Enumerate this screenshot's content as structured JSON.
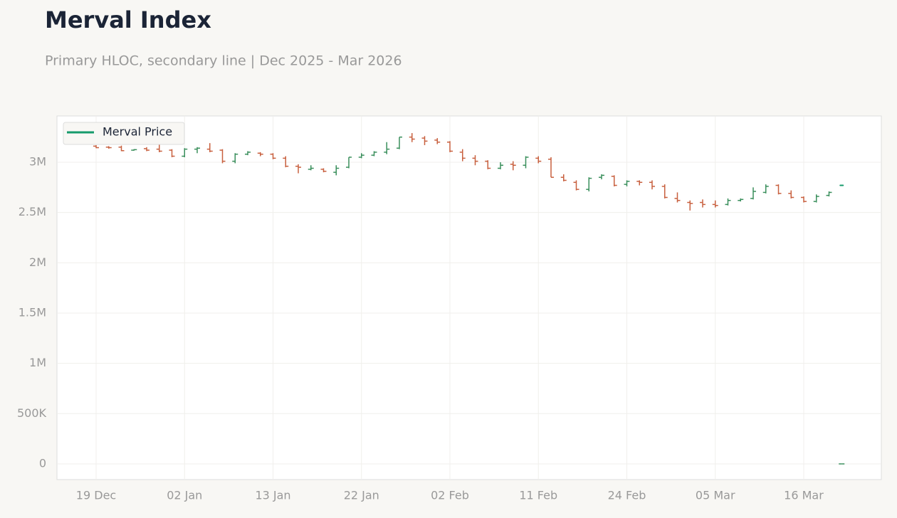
{
  "chart_data": {
    "type": "ohlc",
    "title": "Merval Index",
    "subtitle": "Primary HLOC, secondary line | Dec 2025 - Mar 2026",
    "categories": [
      "19 Dec",
      null,
      null,
      null,
      null,
      null,
      null,
      "02 Jan",
      null,
      null,
      null,
      null,
      null,
      null,
      "13 Jan",
      null,
      null,
      null,
      null,
      null,
      null,
      "22 Jan",
      null,
      null,
      null,
      null,
      null,
      null,
      "02 Feb",
      null,
      null,
      null,
      null,
      null,
      null,
      "11 Feb",
      null,
      null,
      null,
      null,
      null,
      null,
      "24 Feb",
      null,
      null,
      null,
      null,
      null,
      null,
      "05 Mar",
      null,
      null,
      null,
      null,
      null,
      null,
      "16 Mar",
      null,
      null,
      null
    ],
    "ohlc": {
      "up_color": "#3a8f5c",
      "down_color": "#c8603f",
      "open": [
        3160000,
        3150000,
        3150000,
        3120000,
        3135000,
        3130000,
        3120000,
        3060000,
        3130000,
        3130000,
        3120000,
        3010000,
        3080000,
        3090000,
        3080000,
        3040000,
        2960000,
        2930000,
        2930000,
        2900000,
        2950000,
        3050000,
        3070000,
        3100000,
        3140000,
        3250000,
        3240000,
        3220000,
        3200000,
        3100000,
        3040000,
        3010000,
        2940000,
        2980000,
        2970000,
        3040000,
        3030000,
        2850000,
        2800000,
        2730000,
        2850000,
        2860000,
        2780000,
        2810000,
        2800000,
        2760000,
        2640000,
        2600000,
        2600000,
        2580000,
        2580000,
        2620000,
        2640000,
        2700000,
        2770000,
        2690000,
        2650000,
        2610000,
        2670000,
        0
      ],
      "high": [
        3170000,
        3160000,
        3165000,
        3130000,
        3150000,
        3180000,
        3130000,
        3140000,
        3150000,
        3190000,
        3130000,
        3090000,
        3110000,
        3100000,
        3090000,
        3060000,
        2980000,
        2970000,
        2940000,
        2970000,
        3050000,
        3090000,
        3110000,
        3200000,
        3250000,
        3290000,
        3260000,
        3240000,
        3210000,
        3130000,
        3070000,
        3020000,
        3000000,
        3010000,
        3060000,
        3060000,
        3050000,
        2880000,
        2820000,
        2850000,
        2880000,
        2870000,
        2820000,
        2820000,
        2820000,
        2780000,
        2700000,
        2620000,
        2630000,
        2620000,
        2640000,
        2640000,
        2750000,
        2780000,
        2780000,
        2720000,
        2660000,
        2680000,
        2710000,
        0
      ],
      "low": [
        3140000,
        3135000,
        3110000,
        3115000,
        3110000,
        3100000,
        3050000,
        3050000,
        3090000,
        3100000,
        2990000,
        2990000,
        3070000,
        3060000,
        3030000,
        2950000,
        2890000,
        2920000,
        2900000,
        2870000,
        2940000,
        3040000,
        3060000,
        3080000,
        3130000,
        3200000,
        3170000,
        3180000,
        3100000,
        3010000,
        2970000,
        2930000,
        2930000,
        2920000,
        2940000,
        2990000,
        2850000,
        2810000,
        2720000,
        2710000,
        2830000,
        2760000,
        2760000,
        2770000,
        2730000,
        2640000,
        2600000,
        2520000,
        2550000,
        2550000,
        2570000,
        2610000,
        2630000,
        2690000,
        2680000,
        2640000,
        2600000,
        2600000,
        2660000,
        0
      ],
      "close": [
        3145000,
        3145000,
        3115000,
        3125000,
        3120000,
        3110000,
        3060000,
        3130000,
        3140000,
        3110000,
        3010000,
        3080000,
        3100000,
        3080000,
        3040000,
        2960000,
        2950000,
        2940000,
        2910000,
        2940000,
        3050000,
        3070000,
        3100000,
        3130000,
        3250000,
        3230000,
        3210000,
        3200000,
        3110000,
        3040000,
        3010000,
        2940000,
        2970000,
        2970000,
        3050000,
        3010000,
        2850000,
        2820000,
        2730000,
        2840000,
        2870000,
        2770000,
        2810000,
        2800000,
        2760000,
        2650000,
        2620000,
        2590000,
        2580000,
        2570000,
        2620000,
        2630000,
        2710000,
        2760000,
        2690000,
        2650000,
        2610000,
        2660000,
        2700000,
        0
      ]
    },
    "series": [
      {
        "name": "Merval Price",
        "color": "#159a6b",
        "type": "line",
        "values": [
          null,
          null,
          null,
          null,
          null,
          null,
          null,
          null,
          null,
          null,
          null,
          null,
          null,
          null,
          null,
          null,
          null,
          null,
          null,
          null,
          null,
          null,
          null,
          null,
          null,
          null,
          null,
          null,
          null,
          null,
          null,
          null,
          null,
          null,
          null,
          null,
          null,
          null,
          null,
          null,
          null,
          null,
          null,
          null,
          null,
          null,
          null,
          null,
          null,
          null,
          null,
          null,
          null,
          null,
          null,
          null,
          null,
          null,
          null,
          2770000
        ]
      }
    ],
    "ylim": [
      -156000,
      3460000
    ],
    "yticks": [
      0,
      {
        "value": 500000,
        "label": "500K"
      },
      {
        "value": 1000000,
        "label": "1M"
      },
      {
        "value": 1500000,
        "label": "1.5M"
      },
      {
        "value": 2000000,
        "label": "2M"
      },
      {
        "value": 2500000,
        "label": "2.5M"
      },
      {
        "value": 3000000,
        "label": "3M"
      }
    ],
    "grid": true,
    "legend": "upper left"
  }
}
